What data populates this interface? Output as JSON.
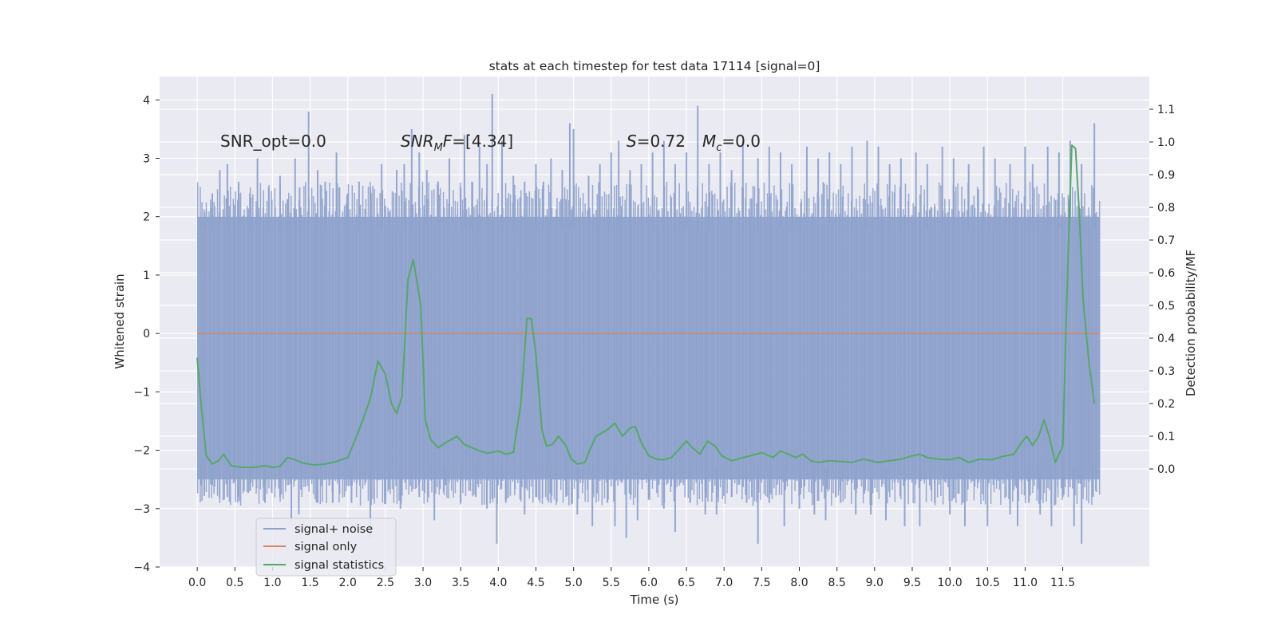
{
  "chart_data": {
    "type": "line",
    "title": "stats at each timestep for test data 17114 [signal=0]",
    "xlabel": "Time (s)",
    "ylabel": "Whitened strain",
    "y2label": "Detection probability/MF",
    "xlim": [
      -0.5,
      12.65
    ],
    "ylim": [
      -4.0,
      4.4
    ],
    "y2lim": [
      -0.3,
      1.2
    ],
    "x_ticks": [
      0.0,
      0.5,
      1.0,
      1.5,
      2.0,
      2.5,
      3.0,
      3.5,
      4.0,
      4.5,
      5.0,
      5.5,
      6.0,
      6.5,
      7.0,
      7.5,
      8.0,
      8.5,
      9.0,
      9.5,
      10.0,
      10.5,
      11.0,
      11.5
    ],
    "y_ticks": [
      -4,
      -3,
      -2,
      -1,
      0,
      1,
      2,
      3,
      4
    ],
    "y2_ticks": [
      0.0,
      0.1,
      0.2,
      0.3,
      0.4,
      0.5,
      0.6,
      0.7,
      0.8,
      0.9,
      1.0,
      1.1
    ],
    "grid": true,
    "legend_placement": "lower-left",
    "annotations": {
      "snr_opt": "SNR_opt=0.0",
      "snr_mf_sym": "SNR",
      "snr_mf_sub": "M",
      "snr_mf_rest": "F=[4.34]",
      "s_sym": "S",
      "s_rest": "=0.72",
      "mc_sym": "M",
      "mc_sub": "c",
      "mc_rest": "=0.0"
    },
    "series": [
      {
        "name": "signal+ noise",
        "color": "#8ea2cc",
        "kind": "noise",
        "x_range": [
          0.0,
          11.99
        ],
        "band_approx": [
          -2.5,
          2.0
        ],
        "spikes": [
          [
            0.05,
            1.9
          ],
          [
            0.12,
            2.1
          ],
          [
            0.2,
            2.4
          ],
          [
            0.3,
            2.8
          ],
          [
            0.4,
            2.9
          ],
          [
            0.55,
            2.6
          ],
          [
            0.7,
            2.4
          ],
          [
            0.8,
            3.0
          ],
          [
            0.95,
            2.5
          ],
          [
            1.1,
            2.7
          ],
          [
            1.2,
            2.3
          ],
          [
            1.3,
            3.0
          ],
          [
            1.36,
            2.5
          ],
          [
            1.48,
            3.8
          ],
          [
            1.6,
            2.8
          ],
          [
            1.7,
            2.6
          ],
          [
            1.85,
            3.1
          ],
          [
            2.0,
            2.4
          ],
          [
            2.15,
            2.6
          ],
          [
            2.3,
            2.5
          ],
          [
            2.45,
            2.9
          ],
          [
            2.65,
            2.8
          ],
          [
            2.75,
            2.9
          ],
          [
            2.85,
            3.5
          ],
          [
            2.95,
            3.1
          ],
          [
            3.05,
            2.8
          ],
          [
            3.2,
            2.6
          ],
          [
            3.35,
            3.0
          ],
          [
            3.5,
            2.5
          ],
          [
            3.55,
            3.4
          ],
          [
            3.65,
            2.6
          ],
          [
            3.75,
            3.2
          ],
          [
            3.85,
            2.9
          ],
          [
            3.92,
            4.1
          ],
          [
            4.05,
            3.3
          ],
          [
            4.2,
            2.7
          ],
          [
            4.35,
            2.6
          ],
          [
            4.5,
            2.9
          ],
          [
            4.6,
            2.6
          ],
          [
            4.7,
            3.0
          ],
          [
            4.85,
            2.8
          ],
          [
            4.95,
            3.6
          ],
          [
            5.0,
            3.5
          ],
          [
            5.2,
            2.7
          ],
          [
            5.35,
            2.9
          ],
          [
            5.5,
            3.1
          ],
          [
            5.6,
            3.3
          ],
          [
            5.75,
            2.8
          ],
          [
            5.9,
            2.9
          ],
          [
            6.05,
            3.1
          ],
          [
            6.2,
            3.3
          ],
          [
            6.35,
            2.9
          ],
          [
            6.5,
            3.1
          ],
          [
            6.65,
            3.9
          ],
          [
            6.8,
            2.9
          ],
          [
            6.95,
            3.1
          ],
          [
            7.1,
            2.8
          ],
          [
            7.25,
            3.3
          ],
          [
            7.45,
            3.0
          ],
          [
            7.6,
            3.2
          ],
          [
            7.75,
            3.1
          ],
          [
            7.9,
            2.9
          ],
          [
            8.1,
            3.2
          ],
          [
            8.25,
            3.0
          ],
          [
            8.4,
            3.1
          ],
          [
            8.55,
            2.9
          ],
          [
            8.7,
            3.2
          ],
          [
            8.9,
            3.3
          ],
          [
            9.05,
            3.2
          ],
          [
            9.2,
            2.9
          ],
          [
            9.35,
            3.0
          ],
          [
            9.55,
            3.1
          ],
          [
            9.7,
            2.9
          ],
          [
            9.9,
            3.2
          ],
          [
            10.05,
            3.0
          ],
          [
            10.25,
            2.9
          ],
          [
            10.45,
            3.2
          ],
          [
            10.6,
            3.0
          ],
          [
            10.8,
            2.9
          ],
          [
            11.0,
            3.2
          ],
          [
            11.1,
            2.9
          ],
          [
            11.3,
            3.2
          ],
          [
            11.45,
            3.1
          ],
          [
            11.6,
            3.3
          ],
          [
            11.75,
            2.9
          ],
          [
            11.92,
            3.6
          ]
        ],
        "dips": [
          [
            0.05,
            -2.6
          ],
          [
            0.2,
            -2.6
          ],
          [
            0.4,
            -2.8
          ],
          [
            0.55,
            -2.8
          ],
          [
            0.7,
            -2.7
          ],
          [
            0.9,
            -2.9
          ],
          [
            1.1,
            -2.8
          ],
          [
            1.25,
            -3.2
          ],
          [
            1.35,
            -3.1
          ],
          [
            1.6,
            -2.9
          ],
          [
            1.8,
            -2.9
          ],
          [
            2.05,
            -2.9
          ],
          [
            2.3,
            -3.5
          ],
          [
            2.5,
            -2.8
          ],
          [
            2.7,
            -3.0
          ],
          [
            2.95,
            -2.8
          ],
          [
            3.15,
            -3.2
          ],
          [
            3.3,
            -2.6
          ],
          [
            3.5,
            -2.9
          ],
          [
            3.7,
            -2.8
          ],
          [
            3.85,
            -3.0
          ],
          [
            3.98,
            -3.6
          ],
          [
            4.1,
            -2.9
          ],
          [
            4.35,
            -3.1
          ],
          [
            4.5,
            -2.8
          ],
          [
            4.7,
            -2.9
          ],
          [
            4.9,
            -2.8
          ],
          [
            5.05,
            -3.1
          ],
          [
            5.25,
            -3.3
          ],
          [
            5.45,
            -2.9
          ],
          [
            5.55,
            -3.3
          ],
          [
            5.7,
            -3.5
          ],
          [
            5.85,
            -3.2
          ],
          [
            6.0,
            -2.8
          ],
          [
            6.2,
            -3.0
          ],
          [
            6.35,
            -3.4
          ],
          [
            6.55,
            -2.9
          ],
          [
            6.75,
            -3.1
          ],
          [
            6.9,
            -3.1
          ],
          [
            7.1,
            -2.8
          ],
          [
            7.3,
            -2.9
          ],
          [
            7.45,
            -3.6
          ],
          [
            7.6,
            -2.9
          ],
          [
            7.8,
            -3.3
          ],
          [
            8.0,
            -3.0
          ],
          [
            8.2,
            -3.1
          ],
          [
            8.35,
            -3.2
          ],
          [
            8.55,
            -2.9
          ],
          [
            8.75,
            -3.1
          ],
          [
            8.95,
            -3.1
          ],
          [
            9.15,
            -3.2
          ],
          [
            9.4,
            -3.3
          ],
          [
            9.6,
            -3.3
          ],
          [
            9.8,
            -2.9
          ],
          [
            10.0,
            -3.1
          ],
          [
            10.2,
            -3.3
          ],
          [
            10.5,
            -3.3
          ],
          [
            10.8,
            -3.1
          ],
          [
            10.9,
            -3.3
          ],
          [
            11.05,
            -2.9
          ],
          [
            11.2,
            -3.1
          ],
          [
            11.35,
            -3.3
          ],
          [
            11.5,
            -2.8
          ],
          [
            11.65,
            -3.3
          ],
          [
            11.75,
            -3.6
          ],
          [
            11.9,
            -2.8
          ]
        ]
      },
      {
        "name": "signal only",
        "color": "#dd8452",
        "x": [
          0.0,
          11.99
        ],
        "y": [
          0.0,
          0.0
        ]
      },
      {
        "name": "signal statistics",
        "color": "#55a868",
        "axis": "right",
        "x": [
          0.0,
          0.05,
          0.12,
          0.2,
          0.28,
          0.35,
          0.45,
          0.6,
          0.75,
          0.9,
          1.0,
          1.1,
          1.2,
          1.3,
          1.4,
          1.55,
          1.7,
          1.85,
          2.0,
          2.1,
          2.2,
          2.3,
          2.4,
          2.5,
          2.58,
          2.65,
          2.72,
          2.8,
          2.87,
          2.9,
          2.97,
          3.03,
          3.1,
          3.2,
          3.3,
          3.45,
          3.55,
          3.7,
          3.85,
          4.0,
          4.1,
          4.2,
          4.3,
          4.38,
          4.44,
          4.5,
          4.58,
          4.64,
          4.72,
          4.8,
          4.9,
          4.97,
          5.05,
          5.15,
          5.22,
          5.3,
          5.45,
          5.55,
          5.65,
          5.75,
          5.82,
          5.9,
          6.0,
          6.1,
          6.2,
          6.3,
          6.4,
          6.5,
          6.58,
          6.68,
          6.78,
          6.88,
          6.97,
          7.1,
          7.25,
          7.35,
          7.5,
          7.65,
          7.75,
          7.85,
          7.95,
          8.05,
          8.15,
          8.25,
          8.4,
          8.55,
          8.7,
          8.85,
          8.95,
          9.05,
          9.2,
          9.35,
          9.5,
          9.6,
          9.7,
          9.85,
          10.0,
          10.12,
          10.25,
          10.4,
          10.55,
          10.7,
          10.85,
          10.95,
          11.02,
          11.1,
          11.18,
          11.25,
          11.32,
          11.4,
          11.5,
          11.57,
          11.62,
          11.67,
          11.72,
          11.77,
          11.85,
          11.92
        ],
        "y": [
          0.34,
          0.2,
          0.04,
          0.015,
          0.025,
          0.045,
          0.01,
          0.005,
          0.005,
          0.01,
          0.005,
          0.008,
          0.035,
          0.028,
          0.018,
          0.012,
          0.015,
          0.023,
          0.035,
          0.09,
          0.15,
          0.215,
          0.33,
          0.29,
          0.2,
          0.17,
          0.22,
          0.58,
          0.64,
          0.6,
          0.5,
          0.15,
          0.09,
          0.065,
          0.08,
          0.1,
          0.075,
          0.06,
          0.048,
          0.055,
          0.045,
          0.05,
          0.2,
          0.46,
          0.46,
          0.35,
          0.12,
          0.07,
          0.075,
          0.1,
          0.07,
          0.03,
          0.015,
          0.02,
          0.06,
          0.1,
          0.12,
          0.14,
          0.1,
          0.125,
          0.13,
          0.08,
          0.04,
          0.03,
          0.028,
          0.035,
          0.06,
          0.085,
          0.065,
          0.045,
          0.085,
          0.07,
          0.04,
          0.025,
          0.035,
          0.04,
          0.05,
          0.035,
          0.055,
          0.045,
          0.035,
          0.045,
          0.025,
          0.02,
          0.025,
          0.023,
          0.02,
          0.03,
          0.025,
          0.02,
          0.025,
          0.03,
          0.04,
          0.045,
          0.035,
          0.03,
          0.028,
          0.035,
          0.02,
          0.03,
          0.028,
          0.038,
          0.045,
          0.08,
          0.1,
          0.072,
          0.1,
          0.15,
          0.1,
          0.02,
          0.07,
          0.65,
          0.99,
          0.98,
          0.78,
          0.52,
          0.32,
          0.2
        ]
      }
    ]
  }
}
